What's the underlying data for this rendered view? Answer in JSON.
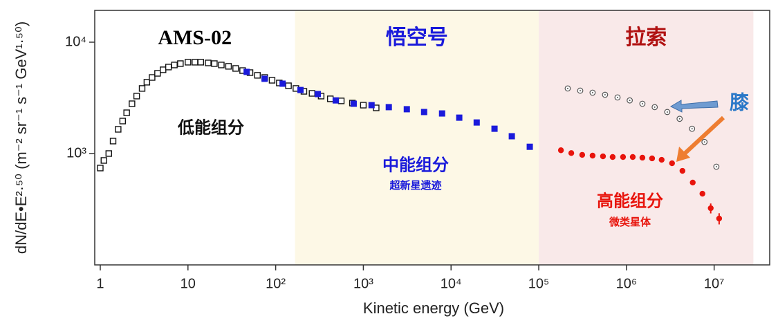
{
  "chart_data": {
    "type": "scatter",
    "x_label": "Kinetic energy (GeV)",
    "y_label": "dN/dE•E²·⁵⁰ (m⁻² sr⁻¹ s⁻¹ GeV¹·⁵⁰)",
    "xlog": true,
    "ylog": true,
    "xlim": [
      0.865,
      43000000
    ],
    "ylim": [
      100,
      19300
    ],
    "xticks": [
      1,
      10,
      {
        "value": 100,
        "label": "10²"
      },
      {
        "value": 1000,
        "label": "10³"
      },
      {
        "value": 10000,
        "label": "10⁴"
      },
      {
        "value": 100000,
        "label": "10⁵"
      },
      {
        "value": 1000000,
        "label": "10⁶"
      },
      {
        "value": 10000000,
        "label": "10⁷"
      }
    ],
    "yticks": [
      {
        "value": 1000,
        "label": "10³"
      },
      {
        "value": 10000,
        "label": "10⁴"
      }
    ],
    "regions": [
      {
        "label": "AMS-02",
        "color": "#ffffff",
        "text_color": "#000000",
        "xrange": [
          0.865,
          166
        ]
      },
      {
        "label": "悟空号",
        "color": "#fdf8e6",
        "text_color": "#1a1adb",
        "xrange": [
          166,
          100000
        ]
      },
      {
        "label": "拉索",
        "color": "#f9e9e9",
        "text_color": "#b01010",
        "xrange": [
          100000,
          28000000
        ]
      }
    ],
    "annotations": [
      {
        "text": "低能组分",
        "color": "#111111"
      },
      {
        "text": "中能组分",
        "color": "#1a1adb"
      },
      {
        "text": "超新星遗迹",
        "color": "#1a1adb"
      },
      {
        "text": "高能组分",
        "color": "#e8140c"
      },
      {
        "text": "微类星体",
        "color": "#e8140c"
      },
      {
        "text": "膝",
        "color": "#2a78c8"
      }
    ],
    "series": [
      {
        "marker": "square-open",
        "color": "#111111",
        "x": [
          1.0,
          1.1,
          1.25,
          1.4,
          1.6,
          1.8,
          2.0,
          2.3,
          2.6,
          3.0,
          3.4,
          3.9,
          4.5,
          5.2,
          6.0,
          7.0,
          8.2,
          10,
          12,
          14,
          17,
          20,
          24,
          29,
          35,
          42,
          51,
          62,
          75,
          91,
          110,
          140,
          170,
          210,
          260,
          330,
          420,
          560,
          750,
          1000,
          1400
        ],
        "values": [
          741,
          867,
          1000,
          1294,
          1650,
          1958,
          2324,
          2800,
          3280,
          3840,
          4370,
          4820,
          5250,
          5650,
          5980,
          6240,
          6420,
          6610,
          6610,
          6610,
          6510,
          6420,
          6240,
          6070,
          5810,
          5560,
          5330,
          5040,
          4820,
          4550,
          4300,
          4060,
          3840,
          3620,
          3470,
          3280,
          3100,
          2970,
          2840,
          2720,
          2570
        ]
      },
      {
        "marker": "square",
        "color": "#1a1adb",
        "x": [
          46.7,
          74.8,
          120,
          192,
          302,
          484,
          776,
          1240,
          1950,
          3130,
          4930,
          7900,
          12400,
          19600,
          31300,
          49300,
          79000
        ],
        "values": [
          5410,
          4690,
          4240,
          3720,
          3420,
          3000,
          2800,
          2720,
          2610,
          2500,
          2360,
          2290,
          2100,
          1900,
          1670,
          1430,
          1150
        ]
      },
      {
        "marker": "circle-dot",
        "color": "#555555",
        "x": [
          214000,
          297000,
          411000,
          570000,
          791000,
          1090000,
          1520000,
          2100000,
          2920000,
          4040000,
          5600000,
          7760000,
          10600000
        ],
        "values": [
          3840,
          3670,
          3520,
          3370,
          3190,
          3000,
          2800,
          2610,
          2360,
          2050,
          1670,
          1270,
          762
        ]
      },
      {
        "marker": "circle",
        "color": "#e8140c",
        "x": [
          179000,
          235000,
          313000,
          411000,
          540000,
          696000,
          914000,
          1180000,
          1520000,
          1960000,
          2520000,
          3310000,
          4350000,
          5700000,
          7350000,
          9140000,
          11400000
        ],
        "values": [
          1070,
          1010,
          973,
          958,
          944,
          931,
          931,
          931,
          918,
          905,
          878,
          818,
          699,
          549,
          436,
          323,
          261
        ],
        "errors": [
          null,
          null,
          null,
          null,
          null,
          null,
          null,
          null,
          null,
          null,
          null,
          null,
          null,
          null,
          null,
          33,
          30
        ]
      }
    ]
  }
}
